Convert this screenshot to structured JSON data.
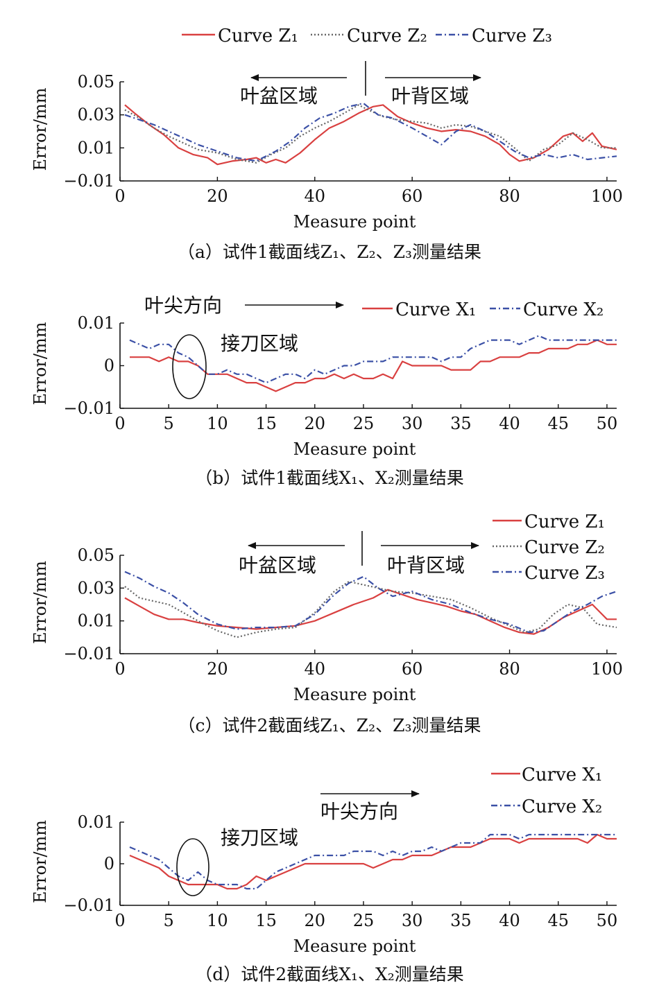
{
  "colors": {
    "z1": "#d94040",
    "z2": "#666666",
    "z3": "#3b50a6"
  },
  "chart_data": [
    {
      "type": "line",
      "caption": "（a）试件1截面线Z₁、Z₂、Z₃测量结果",
      "xlabel": "Measure point",
      "ylabel": "Error/mm",
      "xlim": [
        0,
        102
      ],
      "ylim": [
        -0.01,
        0.05
      ],
      "xticks": [
        0,
        20,
        40,
        60,
        80,
        100
      ],
      "yticks": [
        -0.01,
        0.01,
        0.03,
        0.05
      ],
      "ytick_labels": [
        "−0.01",
        "0.01",
        "0.03",
        "0.05"
      ],
      "legend": [
        "Curve Z₁",
        "Curve Z₂",
        "Curve Z₃"
      ],
      "legend_placement": "top",
      "annotations": {
        "left": "叶盆区域",
        "right": "叶背区域"
      },
      "series": [
        {
          "name": "Curve Z₁",
          "style": "solid",
          "color_key": "z1",
          "x": [
            1,
            3,
            6,
            9,
            12,
            15,
            18,
            20,
            23,
            26,
            28,
            30,
            32,
            34,
            37,
            40,
            43,
            46,
            49,
            52,
            54,
            57,
            60,
            63,
            66,
            69,
            72,
            75,
            78,
            80,
            82,
            85,
            88,
            91,
            93,
            95,
            97,
            99,
            102
          ],
          "y": [
            0.036,
            0.031,
            0.024,
            0.018,
            0.01,
            0.006,
            0.004,
            0.0,
            0.002,
            0.003,
            0.004,
            0.001,
            0.003,
            0.001,
            0.007,
            0.015,
            0.022,
            0.026,
            0.031,
            0.035,
            0.036,
            0.029,
            0.025,
            0.022,
            0.02,
            0.021,
            0.02,
            0.017,
            0.012,
            0.006,
            0.002,
            0.004,
            0.009,
            0.017,
            0.019,
            0.014,
            0.019,
            0.011,
            0.009
          ]
        },
        {
          "name": "Curve Z₂",
          "style": "dotted",
          "color_key": "z2",
          "x": [
            1,
            4,
            7,
            10,
            13,
            16,
            20,
            24,
            28,
            31,
            34,
            37,
            40,
            43,
            46,
            49,
            51,
            54,
            57,
            60,
            63,
            66,
            69,
            72,
            75,
            78,
            81,
            84,
            87,
            90,
            93,
            96,
            99,
            102
          ],
          "y": [
            0.033,
            0.028,
            0.022,
            0.017,
            0.013,
            0.009,
            0.007,
            0.003,
            0.001,
            0.006,
            0.01,
            0.017,
            0.022,
            0.026,
            0.031,
            0.036,
            0.033,
            0.029,
            0.027,
            0.026,
            0.025,
            0.022,
            0.024,
            0.023,
            0.02,
            0.017,
            0.01,
            0.002,
            0.009,
            0.012,
            0.019,
            0.015,
            0.01,
            0.01
          ]
        },
        {
          "name": "Curve Z₃",
          "style": "dashdot",
          "color_key": "z3",
          "x": [
            1,
            4,
            7,
            10,
            13,
            16,
            20,
            24,
            28,
            32,
            35,
            38,
            41,
            44,
            47,
            50,
            53,
            56,
            60,
            63,
            66,
            69,
            72,
            75,
            78,
            81,
            84,
            87,
            90,
            93,
            96,
            99,
            102
          ],
          "y": [
            0.03,
            0.027,
            0.024,
            0.02,
            0.016,
            0.012,
            0.008,
            0.004,
            0.002,
            0.008,
            0.014,
            0.022,
            0.028,
            0.031,
            0.035,
            0.037,
            0.03,
            0.028,
            0.022,
            0.017,
            0.012,
            0.02,
            0.024,
            0.02,
            0.014,
            0.008,
            0.004,
            0.006,
            0.004,
            0.006,
            0.003,
            0.004,
            0.005
          ]
        }
      ]
    },
    {
      "type": "line",
      "caption": "（b）试件1截面线X₁、X₂测量结果",
      "xlabel": "Measure point",
      "ylabel": "Error/mm",
      "xlim": [
        0,
        51
      ],
      "ylim": [
        -0.01,
        0.01
      ],
      "xticks": [
        0,
        5,
        10,
        15,
        20,
        25,
        30,
        35,
        40,
        45,
        50
      ],
      "yticks": [
        -0.01,
        0,
        0.01
      ],
      "ytick_labels": [
        "−0.01",
        "0",
        "0.01"
      ],
      "legend": [
        "Curve X₁",
        "Curve X₂"
      ],
      "legend_placement": "top-right",
      "annotations": {
        "direction": "叶尖方向",
        "region": "接刀区域"
      },
      "series": [
        {
          "name": "Curve X₁",
          "style": "solid",
          "color_key": "z1",
          "x": [
            1,
            2,
            3,
            4,
            5,
            6,
            7,
            8,
            9,
            10,
            11,
            12,
            13,
            14,
            15,
            16,
            17,
            18,
            19,
            20,
            21,
            22,
            23,
            24,
            25,
            26,
            27,
            28,
            29,
            30,
            31,
            32,
            33,
            34,
            35,
            36,
            37,
            38,
            39,
            40,
            41,
            42,
            43,
            44,
            45,
            46,
            47,
            48,
            49,
            50,
            51
          ],
          "y": [
            0.002,
            0.002,
            0.002,
            0.001,
            0.002,
            0.001,
            0.001,
            0.0,
            -0.002,
            -0.002,
            -0.002,
            -0.003,
            -0.004,
            -0.004,
            -0.005,
            -0.006,
            -0.005,
            -0.004,
            -0.004,
            -0.003,
            -0.003,
            -0.002,
            -0.003,
            -0.002,
            -0.003,
            -0.003,
            -0.002,
            -0.003,
            0.001,
            0.0,
            0.0,
            0.0,
            0.0,
            -0.001,
            -0.001,
            -0.001,
            0.001,
            0.001,
            0.002,
            0.002,
            0.002,
            0.003,
            0.003,
            0.004,
            0.004,
            0.004,
            0.005,
            0.005,
            0.006,
            0.005,
            0.005
          ]
        },
        {
          "name": "Curve X₂",
          "style": "dashdot",
          "color_key": "z3",
          "x": [
            1,
            2,
            3,
            4,
            5,
            6,
            7,
            8,
            9,
            10,
            11,
            12,
            13,
            14,
            15,
            16,
            17,
            18,
            19,
            20,
            21,
            22,
            23,
            24,
            25,
            26,
            27,
            28,
            29,
            30,
            31,
            32,
            33,
            34,
            35,
            36,
            37,
            38,
            39,
            40,
            41,
            42,
            43,
            44,
            45,
            46,
            47,
            48,
            49,
            50,
            51
          ],
          "y": [
            0.006,
            0.005,
            0.004,
            0.005,
            0.005,
            0.003,
            0.002,
            0.0,
            -0.002,
            -0.002,
            -0.001,
            -0.002,
            -0.002,
            -0.003,
            -0.004,
            -0.003,
            -0.002,
            -0.002,
            -0.003,
            -0.001,
            -0.002,
            -0.001,
            0.0,
            0.0,
            0.001,
            0.001,
            0.001,
            0.002,
            0.002,
            0.002,
            0.002,
            0.002,
            0.001,
            0.002,
            0.002,
            0.004,
            0.005,
            0.006,
            0.006,
            0.006,
            0.005,
            0.006,
            0.007,
            0.006,
            0.006,
            0.006,
            0.006,
            0.006,
            0.006,
            0.006,
            0.006
          ]
        }
      ]
    },
    {
      "type": "line",
      "caption": "（c）试件2截面线Z₁、Z₂、Z₃测量结果",
      "xlabel": "Measure point",
      "ylabel": "Error/mm",
      "xlim": [
        0,
        102
      ],
      "ylim": [
        -0.01,
        0.05
      ],
      "xticks": [
        0,
        20,
        40,
        60,
        80,
        100
      ],
      "yticks": [
        -0.01,
        0.01,
        0.03,
        0.05
      ],
      "ytick_labels": [
        "−0.01",
        "0.01",
        "0.03",
        "0.05"
      ],
      "legend": [
        "Curve Z₁",
        "Curve Z₂",
        "Curve Z₃"
      ],
      "legend_placement": "top-right",
      "annotations": {
        "left": "叶盆区域",
        "right": "叶背区域"
      },
      "series": [
        {
          "name": "Curve Z₁",
          "style": "solid",
          "color_key": "z1",
          "x": [
            1,
            4,
            7,
            10,
            13,
            16,
            20,
            24,
            28,
            32,
            36,
            40,
            44,
            48,
            52,
            55,
            58,
            61,
            64,
            67,
            70,
            73,
            76,
            79,
            82,
            85,
            88,
            91,
            94,
            97,
            100,
            102
          ],
          "y": [
            0.024,
            0.019,
            0.014,
            0.011,
            0.011,
            0.009,
            0.007,
            0.006,
            0.005,
            0.006,
            0.007,
            0.01,
            0.015,
            0.02,
            0.024,
            0.029,
            0.026,
            0.023,
            0.021,
            0.019,
            0.016,
            0.014,
            0.01,
            0.006,
            0.003,
            0.002,
            0.006,
            0.012,
            0.016,
            0.02,
            0.011,
            0.011
          ]
        },
        {
          "name": "Curve Z₂",
          "style": "dotted",
          "color_key": "z2",
          "x": [
            1,
            4,
            7,
            10,
            13,
            16,
            20,
            24,
            28,
            32,
            36,
            40,
            44,
            47,
            50,
            53,
            56,
            60,
            64,
            68,
            72,
            76,
            80,
            83,
            86,
            89,
            92,
            95,
            98,
            102
          ],
          "y": [
            0.031,
            0.024,
            0.022,
            0.02,
            0.015,
            0.01,
            0.004,
            0.0,
            0.003,
            0.005,
            0.006,
            0.015,
            0.028,
            0.034,
            0.032,
            0.03,
            0.028,
            0.027,
            0.025,
            0.023,
            0.018,
            0.012,
            0.007,
            0.003,
            0.005,
            0.014,
            0.02,
            0.018,
            0.008,
            0.006
          ]
        },
        {
          "name": "Curve Z₃",
          "style": "dashdot",
          "color_key": "z3",
          "x": [
            1,
            4,
            7,
            10,
            13,
            16,
            20,
            24,
            28,
            32,
            36,
            40,
            44,
            47,
            50,
            53,
            56,
            60,
            64,
            68,
            72,
            76,
            80,
            84,
            87,
            90,
            93,
            96,
            99,
            102
          ],
          "y": [
            0.04,
            0.036,
            0.031,
            0.027,
            0.021,
            0.014,
            0.008,
            0.005,
            0.006,
            0.006,
            0.007,
            0.014,
            0.026,
            0.033,
            0.037,
            0.03,
            0.025,
            0.028,
            0.023,
            0.02,
            0.015,
            0.011,
            0.008,
            0.003,
            0.004,
            0.01,
            0.016,
            0.02,
            0.025,
            0.028
          ]
        }
      ]
    },
    {
      "type": "line",
      "caption": "（d）试件2截面线X₁、X₂测量结果",
      "xlabel": "Measure point",
      "ylabel": "Error/mm",
      "xlim": [
        0,
        51
      ],
      "ylim": [
        -0.01,
        0.01
      ],
      "xticks": [
        0,
        5,
        10,
        15,
        20,
        25,
        30,
        35,
        40,
        45,
        50
      ],
      "yticks": [
        -0.01,
        0,
        0.01
      ],
      "ytick_labels": [
        "−0.01",
        "0",
        "0.01"
      ],
      "legend": [
        "Curve X₁",
        "Curve X₂"
      ],
      "legend_placement": "top-right",
      "annotations": {
        "direction": "叶尖方向",
        "region": "接刀区域"
      },
      "series": [
        {
          "name": "Curve X₁",
          "style": "solid",
          "color_key": "z1",
          "x": [
            1,
            2,
            3,
            4,
            5,
            6,
            7,
            8,
            9,
            10,
            11,
            12,
            13,
            14,
            15,
            16,
            17,
            18,
            19,
            20,
            21,
            22,
            23,
            24,
            25,
            26,
            27,
            28,
            29,
            30,
            31,
            32,
            33,
            34,
            35,
            36,
            37,
            38,
            39,
            40,
            41,
            42,
            43,
            44,
            45,
            46,
            47,
            48,
            49,
            50,
            51
          ],
          "y": [
            0.002,
            0.001,
            0.0,
            -0.001,
            -0.003,
            -0.004,
            -0.005,
            -0.005,
            -0.005,
            -0.005,
            -0.006,
            -0.006,
            -0.005,
            -0.003,
            -0.004,
            -0.003,
            -0.002,
            -0.001,
            0.0,
            0.0,
            0.0,
            0.0,
            0.0,
            0.0,
            0.0,
            -0.001,
            0.0,
            0.001,
            0.001,
            0.002,
            0.002,
            0.002,
            0.003,
            0.004,
            0.004,
            0.004,
            0.005,
            0.006,
            0.006,
            0.006,
            0.005,
            0.006,
            0.006,
            0.006,
            0.006,
            0.006,
            0.006,
            0.005,
            0.007,
            0.006,
            0.006
          ]
        },
        {
          "name": "Curve X₂",
          "style": "dashdot",
          "color_key": "z3",
          "x": [
            1,
            2,
            3,
            4,
            5,
            6,
            7,
            8,
            9,
            10,
            11,
            12,
            13,
            14,
            15,
            16,
            17,
            18,
            19,
            20,
            21,
            22,
            23,
            24,
            25,
            26,
            27,
            28,
            29,
            30,
            31,
            32,
            33,
            34,
            35,
            36,
            37,
            38,
            39,
            40,
            41,
            42,
            43,
            44,
            45,
            46,
            47,
            48,
            49,
            50,
            51
          ],
          "y": [
            0.004,
            0.003,
            0.002,
            0.001,
            -0.001,
            -0.003,
            -0.004,
            -0.002,
            -0.004,
            -0.005,
            -0.005,
            -0.005,
            -0.006,
            -0.006,
            -0.004,
            -0.002,
            -0.001,
            0.0,
            0.001,
            0.002,
            0.002,
            0.002,
            0.002,
            0.003,
            0.003,
            0.003,
            0.002,
            0.003,
            0.002,
            0.003,
            0.003,
            0.004,
            0.003,
            0.004,
            0.005,
            0.005,
            0.005,
            0.007,
            0.007,
            0.007,
            0.006,
            0.007,
            0.007,
            0.007,
            0.007,
            0.007,
            0.007,
            0.007,
            0.007,
            0.007,
            0.007
          ]
        }
      ]
    }
  ]
}
